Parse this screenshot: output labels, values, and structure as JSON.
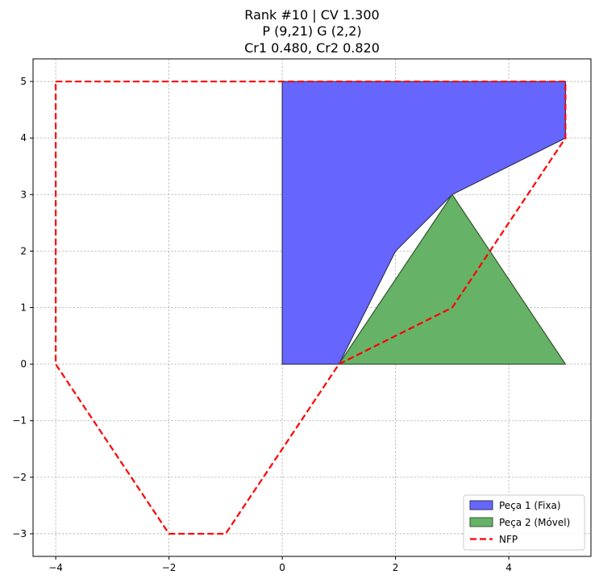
{
  "chart_data": {
    "type": "polygon-plot",
    "title_lines": [
      "Rank #10 | CV 1.300",
      "P (9,21) G (2,2)",
      "Cr1 0.480, Cr2 0.820"
    ],
    "xlim": [
      -4.4,
      5.45
    ],
    "ylim": [
      -3.4,
      5.4
    ],
    "x_ticks": [
      -4,
      -2,
      0,
      2,
      4
    ],
    "y_ticks": [
      -3,
      -2,
      -1,
      0,
      1,
      2,
      3,
      4,
      5
    ],
    "x_tick_labels": [
      "−4",
      "−2",
      "0",
      "2",
      "4"
    ],
    "y_tick_labels": [
      "−3",
      "−2",
      "−1",
      "0",
      "1",
      "2",
      "3",
      "4",
      "5"
    ],
    "grid": true,
    "legend_position": "lower right",
    "series": [
      {
        "name": "Peça 1 (Fixa)",
        "kind": "polygon",
        "fill": "#6666ff",
        "edge": "#333355",
        "points": [
          [
            0,
            0
          ],
          [
            1,
            0
          ],
          [
            2,
            2
          ],
          [
            3,
            3
          ],
          [
            5,
            4
          ],
          [
            5,
            5
          ],
          [
            0,
            5
          ]
        ]
      },
      {
        "name": "Peça 2 (Móvel)",
        "kind": "polygon",
        "fill": "#66b266",
        "edge": "#335533",
        "points": [
          [
            1,
            0
          ],
          [
            5,
            0
          ],
          [
            3,
            3
          ]
        ]
      },
      {
        "name": "NFP",
        "kind": "dashed-line",
        "color": "#ff0000",
        "points": [
          [
            -4,
            5
          ],
          [
            5,
            5
          ],
          [
            5,
            4
          ],
          [
            3,
            1
          ],
          [
            1,
            0
          ],
          [
            -1,
            -3
          ],
          [
            -2,
            -3
          ],
          [
            -4,
            0
          ],
          [
            -4,
            5
          ]
        ]
      }
    ]
  }
}
